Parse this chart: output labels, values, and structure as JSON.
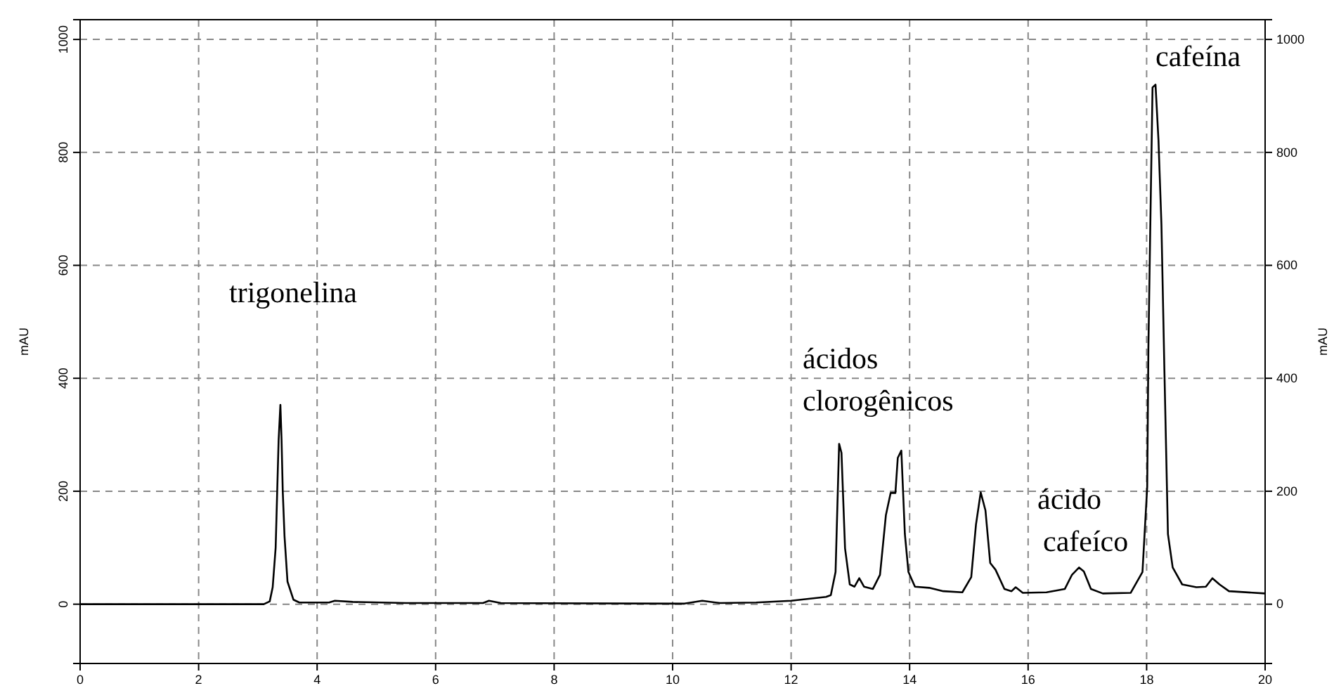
{
  "chart_data": {
    "type": "line",
    "ylabel": "mAU",
    "y2label": "mAU",
    "xlim": [
      0,
      20
    ],
    "xticks": [
      0,
      2,
      4,
      6,
      8,
      10,
      12,
      14,
      16,
      18,
      20
    ],
    "ylim": [
      -105,
      1035
    ],
    "yticks": [
      0,
      200,
      400,
      600,
      800,
      1000
    ],
    "y2lim": [
      -105,
      1035
    ],
    "y2ticks": [
      0,
      200,
      400,
      600,
      800,
      1000
    ],
    "grid": true,
    "marker": "none",
    "line_style": "solid",
    "series": [
      {
        "color": "#000000",
        "x": [
          0,
          3.1,
          3.2,
          3.25,
          3.3,
          3.35,
          3.38,
          3.4,
          3.42,
          3.45,
          3.5,
          3.6,
          3.7,
          4.2,
          4.3,
          4.6,
          5.5,
          6.8,
          6.9,
          7.1,
          10.2,
          10.5,
          10.8,
          11.41,
          12,
          12.59,
          12.67,
          12.75,
          12.81,
          12.85,
          12.91,
          12.99,
          13.07,
          13.15,
          13.23,
          13.38,
          13.5,
          13.6,
          13.68,
          13.76,
          13.8,
          13.86,
          13.92,
          13.98,
          14.09,
          14.33,
          14.57,
          14.89,
          15.04,
          15.12,
          15.2,
          15.28,
          15.36,
          15.45,
          15.6,
          15.72,
          15.79,
          15.91,
          16.31,
          16.62,
          16.74,
          16.86,
          16.94,
          17.06,
          17.26,
          17.73,
          17.93,
          18.01,
          18.03,
          18.06,
          18.1,
          18.15,
          18.2,
          18.25,
          18.3,
          18.36,
          18.44,
          18.6,
          18.84,
          19,
          19.11,
          19.23,
          19.39,
          20
        ],
        "values": [
          0,
          0,
          5,
          30,
          100,
          290,
          353,
          290,
          200,
          120,
          40,
          8,
          3,
          3,
          6,
          4,
          2,
          2,
          6,
          2,
          1,
          6,
          2,
          3,
          6,
          13,
          16,
          57,
          284,
          268,
          99,
          35,
          31,
          46,
          31,
          27,
          52,
          158,
          197,
          197,
          259,
          272,
          124,
          57,
          31,
          29,
          23,
          21,
          48,
          141,
          198,
          166,
          73,
          61,
          27,
          23,
          30,
          20,
          21,
          27,
          52,
          65,
          58,
          27,
          19,
          20,
          57,
          208,
          455,
          655,
          915,
          920,
          822,
          672,
          415,
          124,
          65,
          35,
          30,
          31,
          46,
          35,
          23,
          19
        ]
      }
    ],
    "annotations": [
      "trigonelina",
      "ácidos clorogênicos",
      "ácido cafeíco",
      "cafeína"
    ]
  }
}
